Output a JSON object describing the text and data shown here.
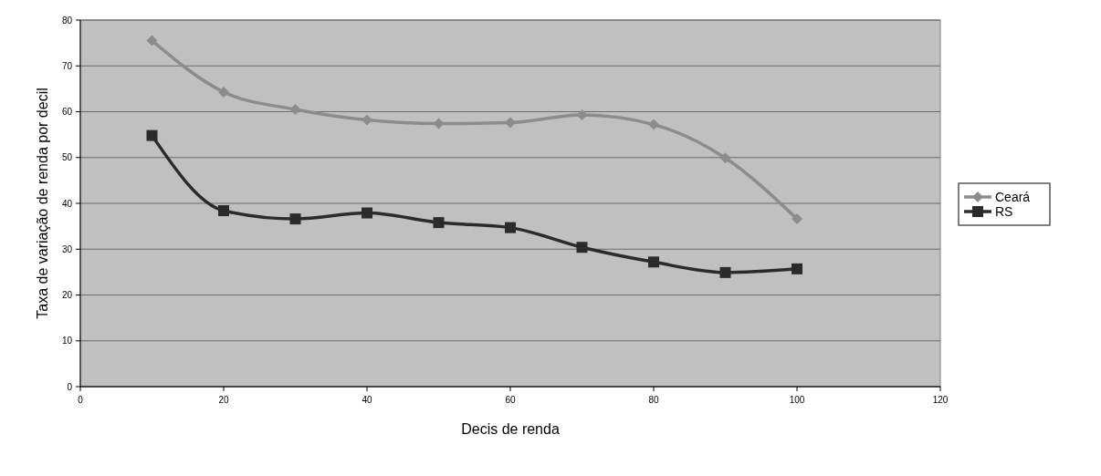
{
  "chart_data": {
    "type": "line",
    "xlabel": "Decis de renda",
    "ylabel": "Taxa de variação de renda por decil",
    "x": [
      10,
      20,
      30,
      40,
      50,
      60,
      70,
      80,
      90,
      100
    ],
    "series": [
      {
        "name": "Ceará",
        "color": "#8c8c8c",
        "marker": "diamond",
        "values": [
          75.5,
          64.3,
          60.5,
          58.2,
          57.4,
          57.6,
          59.3,
          57.2,
          49.9,
          36.6
        ]
      },
      {
        "name": "RS",
        "color": "#2b2b2b",
        "marker": "square",
        "values": [
          54.8,
          38.4,
          36.6,
          37.9,
          35.8,
          34.7,
          30.4,
          27.2,
          24.9,
          25.7
        ]
      }
    ],
    "xlim": [
      0,
      120
    ],
    "xticks": [
      0,
      20,
      40,
      60,
      80,
      100,
      120
    ],
    "ylim": [
      0,
      80
    ],
    "yticks": [
      0,
      10,
      20,
      30,
      40,
      50,
      60,
      70,
      80
    ],
    "grid": "y",
    "legend": "right",
    "line_style": "solid"
  }
}
